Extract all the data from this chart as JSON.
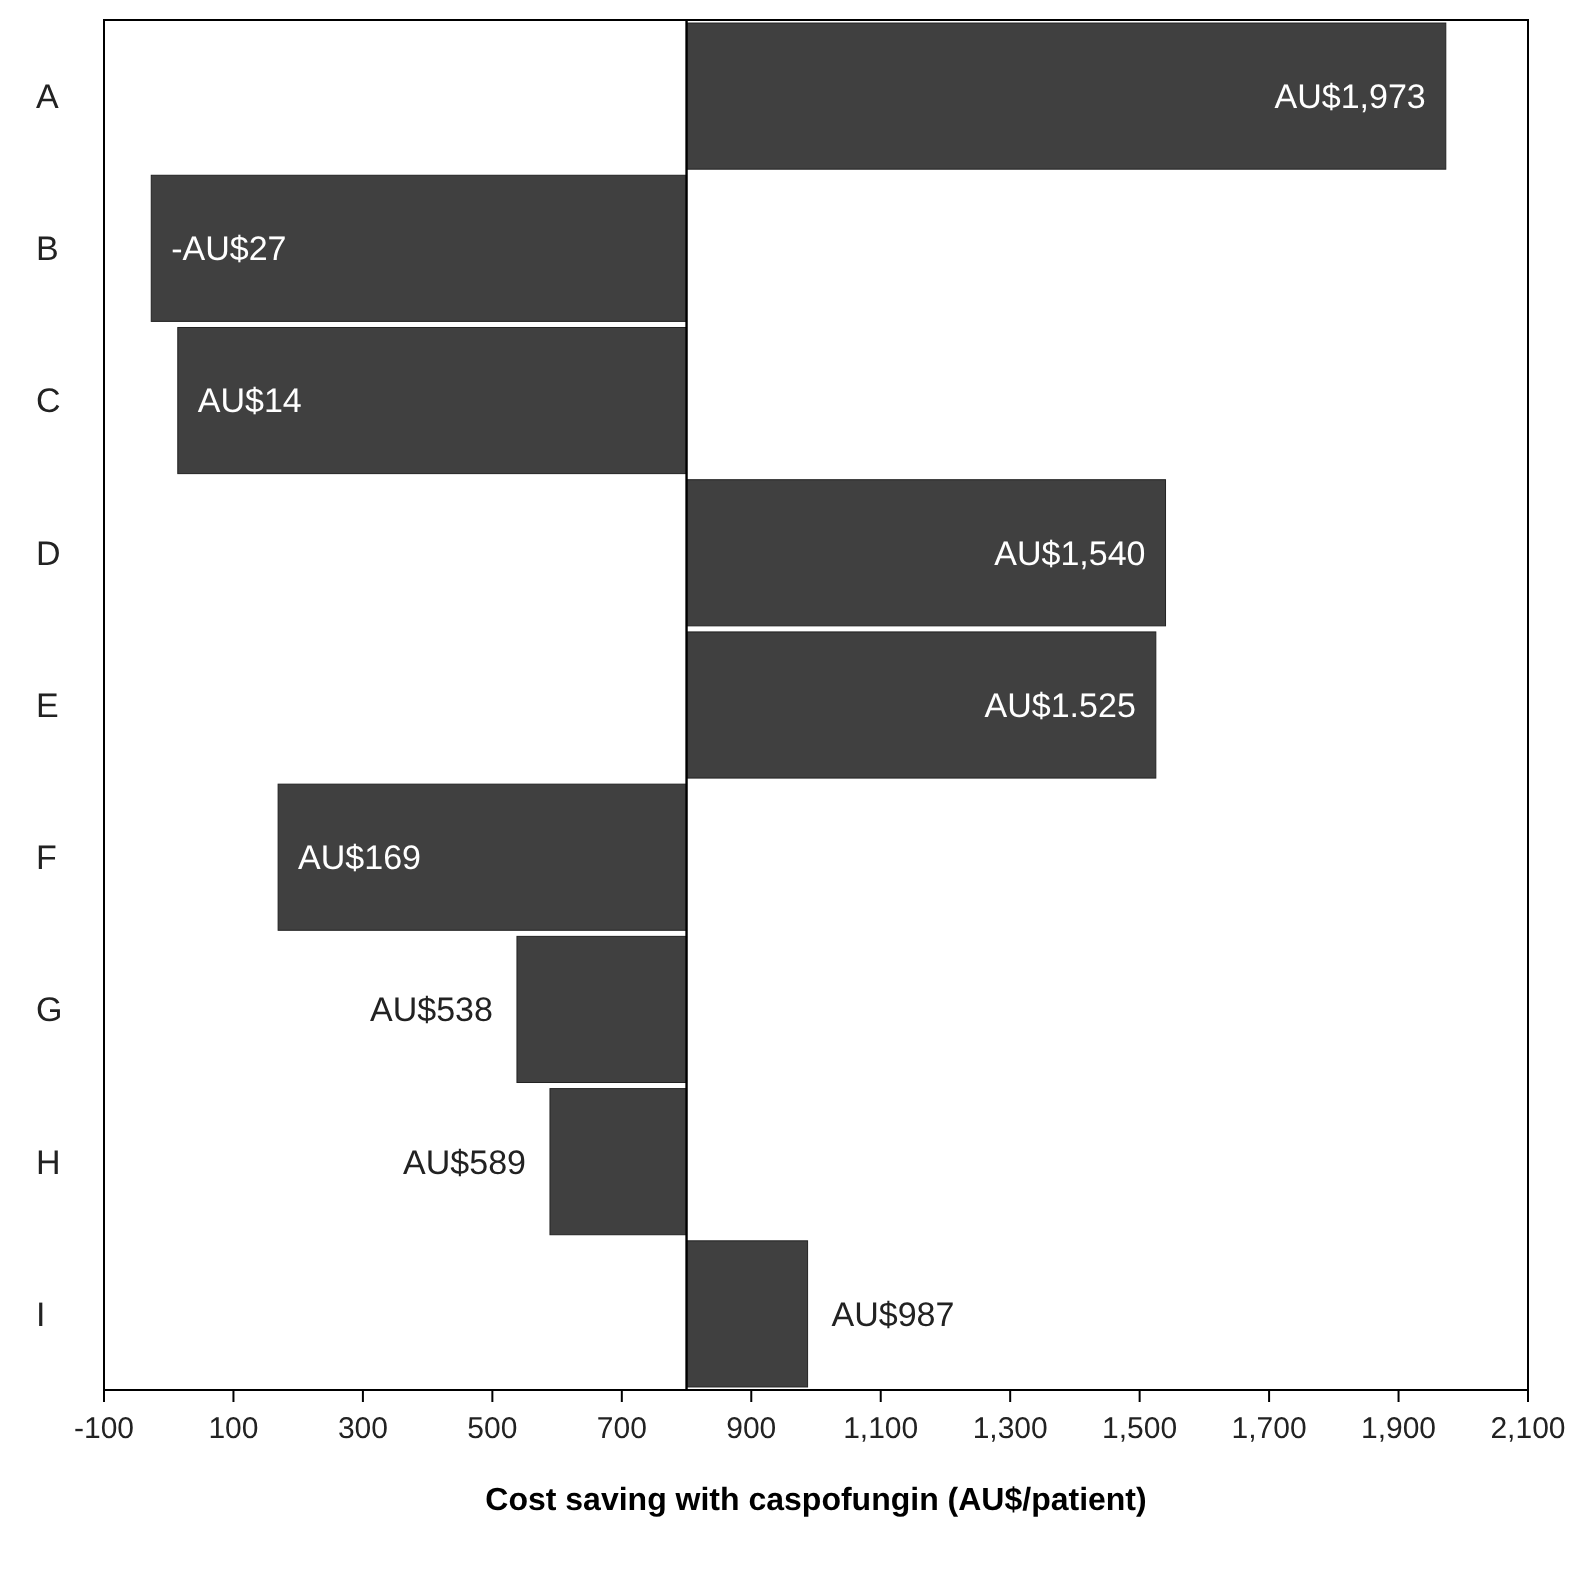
{
  "chart_data": {
    "type": "bar",
    "orientation": "horizontal",
    "xlabel": "Cost saving with caspofungin (AU$/patient)",
    "categories": [
      "A",
      "B",
      "C",
      "D",
      "E",
      "F",
      "G",
      "H",
      "I"
    ],
    "base": [
      800,
      800,
      800,
      800,
      800,
      800,
      800,
      800,
      800
    ],
    "values": [
      1173,
      -827,
      -786,
      740,
      725,
      -631,
      -262,
      -211,
      187
    ],
    "value_labels": [
      "AU$1,973",
      "-AU$27",
      "AU$14",
      "AU$1,540",
      "AU$1.525",
      "AU$169",
      "AU$538",
      "AU$589",
      "AU$987"
    ],
    "color": "#404040",
    "xlim": [
      -100,
      2100
    ],
    "xticks": [
      -100,
      100,
      300,
      500,
      700,
      900,
      {
        "value": 1100,
        "label": "1,100"
      },
      {
        "value": 1300,
        "label": "1,300"
      },
      {
        "value": 1500,
        "label": "1,500"
      },
      {
        "value": 1700,
        "label": "1,700"
      },
      {
        "value": 1900,
        "label": "1,900"
      },
      {
        "value": 2100,
        "label": "2,100"
      }
    ],
    "ref_lines": [
      {
        "axis": "x",
        "value": 800,
        "color": "#000000"
      }
    ],
    "grid": false
  }
}
